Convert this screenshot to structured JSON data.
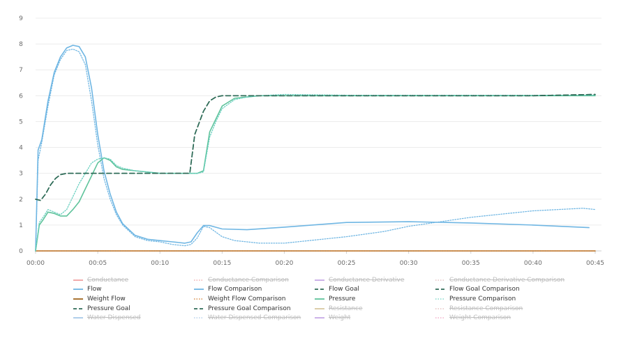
{
  "chart_data": {
    "type": "line",
    "x_unit": "seconds",
    "xlim": [
      0,
      45
    ],
    "ylim": [
      0,
      9
    ],
    "x_ticks": [
      "00:00",
      "00:05",
      "00:10",
      "00:15",
      "00:20",
      "00:25",
      "00:30",
      "00:35",
      "00:40",
      "00:45"
    ],
    "y_ticks": [
      "0",
      "1",
      "2",
      "3",
      "4",
      "5",
      "6",
      "7",
      "8",
      "9"
    ],
    "grid": "horizontal",
    "legend_position": "bottom",
    "series": [
      {
        "name": "Flow",
        "color": "#6fb6e3",
        "style": "solid",
        "visible": true,
        "x": [
          0,
          0.2,
          0.5,
          1,
          1.5,
          2,
          2.5,
          3,
          3.5,
          4,
          4.5,
          5,
          5.5,
          6,
          6.5,
          7,
          8,
          9,
          10,
          11,
          12,
          12.5,
          13,
          13.5,
          14,
          15,
          17,
          20,
          25,
          30,
          35,
          40,
          44.5
        ],
        "y": [
          0,
          3.9,
          4.3,
          5.8,
          6.9,
          7.5,
          7.85,
          7.95,
          7.9,
          7.5,
          6.3,
          4.5,
          3.1,
          2.2,
          1.5,
          1.05,
          0.6,
          0.45,
          0.4,
          0.35,
          0.3,
          0.35,
          0.7,
          0.98,
          0.98,
          0.85,
          0.82,
          0.92,
          1.1,
          1.13,
          1.08,
          1.0,
          0.9
        ]
      },
      {
        "name": "Flow Comparison",
        "color": "#6fb6e3",
        "style": "dotted",
        "visible": true,
        "x": [
          0,
          0.2,
          0.5,
          1,
          1.5,
          2,
          2.5,
          3,
          3.5,
          4,
          4.5,
          5,
          5.5,
          6,
          6.5,
          7,
          8,
          9,
          10,
          11,
          12,
          12.5,
          13,
          13.5,
          14,
          15,
          16,
          17,
          18,
          20,
          22,
          25,
          28,
          30,
          35,
          40,
          44,
          45
        ],
        "y": [
          0,
          3.5,
          4.2,
          5.6,
          6.8,
          7.4,
          7.75,
          7.8,
          7.7,
          7.2,
          5.8,
          4.1,
          2.8,
          2.0,
          1.4,
          1.0,
          0.55,
          0.4,
          0.35,
          0.25,
          0.2,
          0.25,
          0.5,
          0.95,
          0.9,
          0.55,
          0.4,
          0.35,
          0.3,
          0.3,
          0.4,
          0.55,
          0.75,
          0.95,
          1.3,
          1.55,
          1.65,
          1.6
        ]
      },
      {
        "name": "Flow Goal",
        "color": "#2e6b57",
        "style": "dashed",
        "visible": false,
        "x": [],
        "y": []
      },
      {
        "name": "Flow Goal Comparison",
        "color": "#2e6b57",
        "style": "dashed",
        "visible": false,
        "x": [],
        "y": []
      },
      {
        "name": "Weight Flow",
        "color": "#a0671f",
        "style": "solid",
        "visible": true,
        "x": [
          0,
          45
        ],
        "y": [
          0,
          0
        ]
      },
      {
        "name": "Weight Flow Comparison",
        "color": "#d07a2a",
        "style": "dotted",
        "visible": true,
        "x": [
          0,
          45
        ],
        "y": [
          0,
          0
        ]
      },
      {
        "name": "Pressure",
        "color": "#5fc39b",
        "style": "solid",
        "visible": true,
        "x": [
          0,
          0.3,
          0.6,
          1,
          1.5,
          2,
          2.5,
          3,
          3.5,
          4,
          4.5,
          5,
          5.5,
          6,
          6.5,
          7,
          8,
          9,
          10,
          11,
          12,
          13,
          13.5,
          14,
          14.5,
          15,
          16,
          17,
          18,
          20,
          25,
          30,
          35,
          40,
          45
        ],
        "y": [
          0,
          1.0,
          1.2,
          1.5,
          1.45,
          1.35,
          1.35,
          1.6,
          1.9,
          2.4,
          2.9,
          3.4,
          3.6,
          3.5,
          3.25,
          3.15,
          3.1,
          3.05,
          3.0,
          3.0,
          3.0,
          3.0,
          3.1,
          4.6,
          5.1,
          5.6,
          5.9,
          5.95,
          6.0,
          6.0,
          6.0,
          6.0,
          6.0,
          6.0,
          6.0
        ]
      },
      {
        "name": "Pressure Comparison",
        "color": "#6ad0c0",
        "style": "dotted",
        "visible": true,
        "x": [
          0,
          0.3,
          0.6,
          1,
          1.5,
          2,
          2.5,
          3,
          3.5,
          4,
          4.5,
          5,
          5.5,
          6,
          6.5,
          7,
          8,
          9,
          10,
          11,
          12,
          13,
          13.5,
          14,
          14.5,
          15,
          16,
          17,
          18,
          20,
          25,
          30,
          35,
          40,
          45
        ],
        "y": [
          0,
          1.1,
          1.3,
          1.6,
          1.5,
          1.4,
          1.6,
          2.1,
          2.6,
          3.0,
          3.4,
          3.55,
          3.6,
          3.55,
          3.3,
          3.2,
          3.1,
          3.05,
          3.0,
          3.0,
          3.0,
          3.0,
          3.05,
          4.4,
          5.0,
          5.5,
          5.85,
          5.95,
          6.0,
          6.05,
          6.02,
          6.02,
          6.02,
          6.02,
          6.02
        ]
      },
      {
        "name": "Pressure Goal",
        "color": "#2e6b57",
        "style": "dashed",
        "visible": true,
        "x": [
          0,
          0.4,
          0.8,
          1.2,
          1.6,
          2,
          2.5,
          3,
          4,
          5,
          6,
          8,
          10,
          12,
          12.4,
          12.8,
          13.5,
          14,
          14.5,
          15,
          16,
          20,
          25,
          30,
          35,
          40,
          45
        ],
        "y": [
          2.0,
          1.95,
          2.2,
          2.55,
          2.8,
          2.95,
          3.0,
          3.0,
          3.0,
          3.0,
          3.0,
          3.0,
          3.0,
          3.0,
          3.0,
          4.5,
          5.4,
          5.8,
          5.95,
          6.0,
          6.0,
          6.0,
          6.0,
          6.0,
          6.0,
          6.0,
          6.05
        ]
      },
      {
        "name": "Pressure Goal Comparison",
        "color": "#2e6b57",
        "style": "dashed",
        "visible": true,
        "x": [
          0,
          0.4,
          0.8,
          1.2,
          1.6,
          2,
          2.5,
          3,
          4,
          5,
          6,
          8,
          10,
          12,
          12.4,
          12.8,
          13.5,
          14,
          14.5,
          15,
          16,
          20,
          25,
          30,
          35,
          40,
          45
        ],
        "y": [
          2.0,
          1.95,
          2.2,
          2.55,
          2.8,
          2.95,
          3.0,
          3.0,
          3.0,
          3.0,
          3.0,
          3.0,
          3.0,
          3.0,
          3.0,
          4.5,
          5.4,
          5.8,
          5.95,
          6.0,
          6.0,
          6.0,
          6.0,
          6.0,
          6.0,
          6.0,
          6.05
        ]
      }
    ],
    "legend": [
      {
        "label": "Conductance",
        "color": "#f0a0a0",
        "style": "solid",
        "enabled": false
      },
      {
        "label": "Conductance Comparison",
        "color": "#f0a0a0",
        "style": "dotted",
        "enabled": false
      },
      {
        "label": "Conductance Derivative",
        "color": "#c7a9e6",
        "style": "solid",
        "enabled": false
      },
      {
        "label": "Conductance Derivative Comparison",
        "color": "#e0b8b8",
        "style": "dotted",
        "enabled": false
      },
      {
        "label": "Flow",
        "color": "#6fb6e3",
        "style": "solid",
        "enabled": true
      },
      {
        "label": "Flow Comparison",
        "color": "#6fb6e3",
        "style": "solid",
        "enabled": true
      },
      {
        "label": "Flow Goal",
        "color": "#2e6b57",
        "style": "dashed",
        "enabled": true
      },
      {
        "label": "Flow Goal Comparison",
        "color": "#2e6b57",
        "style": "dashed",
        "enabled": true
      },
      {
        "label": "Weight Flow",
        "color": "#a0671f",
        "style": "solid",
        "enabled": true
      },
      {
        "label": "Weight Flow Comparison",
        "color": "#d07a2a",
        "style": "dotted",
        "enabled": true
      },
      {
        "label": "Pressure",
        "color": "#5fc39b",
        "style": "solid",
        "enabled": true
      },
      {
        "label": "Pressure Comparison",
        "color": "#6ad0c0",
        "style": "dotted",
        "enabled": true
      },
      {
        "label": "Pressure Goal",
        "color": "#2e6b57",
        "style": "dashed",
        "enabled": true
      },
      {
        "label": "Pressure Goal Comparison",
        "color": "#2e6b57",
        "style": "dashed",
        "enabled": true
      },
      {
        "label": "Resistance",
        "color": "#d8c8a0",
        "style": "solid",
        "enabled": false
      },
      {
        "label": "Resistance Comparison",
        "color": "#e0b8b8",
        "style": "dotted",
        "enabled": false
      },
      {
        "label": "Water Dispensed",
        "color": "#a8c8e8",
        "style": "solid",
        "enabled": false
      },
      {
        "label": "Water Dispensed Comparison",
        "color": "#a8c8e8",
        "style": "dotted",
        "enabled": false
      },
      {
        "label": "Weight",
        "color": "#c7a9e6",
        "style": "solid",
        "enabled": false
      },
      {
        "label": "Weight Comparison",
        "color": "#f0a0c0",
        "style": "dotted",
        "enabled": false
      }
    ]
  }
}
